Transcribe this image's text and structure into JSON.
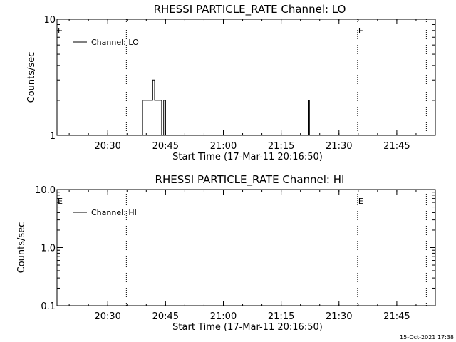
{
  "footer": {
    "timestamp": "15-Oct-2021 17:38"
  },
  "chart_data": [
    {
      "type": "line",
      "title": "RHESSI PARTICLE_RATE Channel: LO",
      "xlabel": "Start Time (17-Mar-11 20:16:50)",
      "ylabel": "Counts/sec",
      "y_scale": "log",
      "xlim": [
        "20:16:50",
        "21:55:00"
      ],
      "ylim": [
        1,
        10
      ],
      "x_ticks": [
        "20:30",
        "20:45",
        "21:00",
        "21:15",
        "21:30",
        "21:45"
      ],
      "y_ticks": [
        "1",
        "10"
      ],
      "legend": "top-left",
      "markers": [
        {
          "x": "20:34:50",
          "label": ""
        },
        {
          "x": "21:34:50",
          "label": "E"
        },
        {
          "x": "21:52:40",
          "label": ""
        },
        {
          "x": "20:16:50",
          "label": "E"
        }
      ],
      "series": [
        {
          "name": "Channel: LO",
          "step": true,
          "points": [
            [
              "20:39:00",
              1
            ],
            [
              "20:39:00",
              2
            ],
            [
              "20:41:40",
              2
            ],
            [
              "20:41:40",
              3
            ],
            [
              "20:42:10",
              3
            ],
            [
              "20:42:10",
              2
            ],
            [
              "20:44:00",
              2
            ],
            [
              "20:44:00",
              1
            ],
            [
              "20:44:30",
              1
            ],
            [
              "20:44:30",
              2
            ],
            [
              "20:45:00",
              2
            ],
            [
              "20:45:00",
              1
            ],
            [
              "21:22:00",
              1
            ],
            [
              "21:22:00",
              2
            ],
            [
              "21:22:20",
              2
            ],
            [
              "21:22:20",
              1
            ]
          ]
        }
      ]
    },
    {
      "type": "line",
      "title": "RHESSI PARTICLE_RATE Channel: HI",
      "xlabel": "Start Time (17-Mar-11 20:16:50)",
      "ylabel": "Counts/sec",
      "y_scale": "log",
      "xlim": [
        "20:16:50",
        "21:55:00"
      ],
      "ylim": [
        0.1,
        10
      ],
      "x_ticks": [
        "20:30",
        "20:45",
        "21:00",
        "21:15",
        "21:30",
        "21:45"
      ],
      "y_ticks": [
        "0.1",
        "1.0",
        "10.0"
      ],
      "legend": "top-left",
      "markers": [
        {
          "x": "20:34:50",
          "label": ""
        },
        {
          "x": "21:34:50",
          "label": "E"
        },
        {
          "x": "21:52:40",
          "label": ""
        },
        {
          "x": "20:16:50",
          "label": "E"
        }
      ],
      "series": [
        {
          "name": "Channel: HI",
          "step": true,
          "points": []
        }
      ]
    }
  ]
}
